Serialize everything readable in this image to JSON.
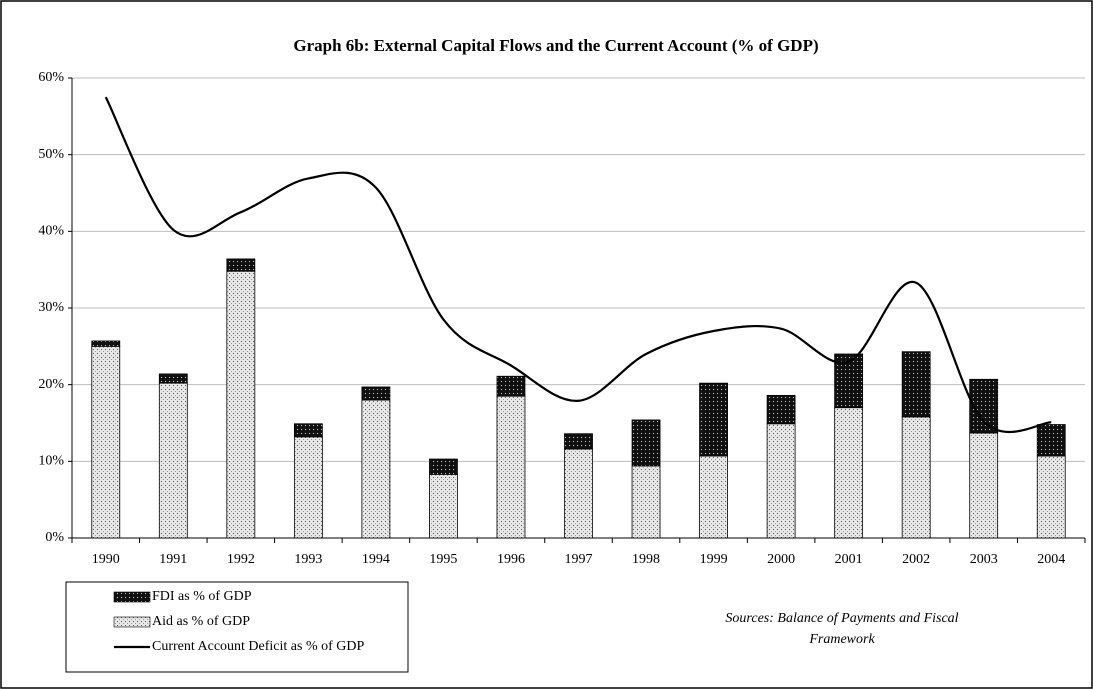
{
  "chart_data": {
    "type": "bar",
    "title": "Graph 6b: External Capital Flows and the Current Account (% of GDP)",
    "categories": [
      "1990",
      "1991",
      "1992",
      "1993",
      "1994",
      "1995",
      "1996",
      "1997",
      "1998",
      "1999",
      "2000",
      "2001",
      "2002",
      "2003",
      "2004"
    ],
    "series": [
      {
        "name": "Aid as % of GDP",
        "type": "bar",
        "color": "#e6e6e6",
        "values": [
          25.0,
          20.2,
          34.8,
          13.2,
          18.0,
          8.3,
          18.5,
          11.6,
          9.4,
          10.7,
          14.9,
          17.0,
          15.8,
          13.7,
          10.7
        ]
      },
      {
        "name": "FDI as % of GDP",
        "type": "bar",
        "color": "#111111",
        "values": [
          0.7,
          1.2,
          1.6,
          1.7,
          1.7,
          2.0,
          2.6,
          2.0,
          6.0,
          9.5,
          3.7,
          7.0,
          8.5,
          7.0,
          4.1
        ]
      },
      {
        "name": "Current Account Deficit as % of GDP",
        "type": "line",
        "color": "#000000",
        "values": [
          57.5,
          40.2,
          42.5,
          46.9,
          45.7,
          28.5,
          22.5,
          17.9,
          24.0,
          27.0,
          27.3,
          23.0,
          33.3,
          15.2,
          15.1
        ]
      }
    ],
    "ylim": [
      0,
      60
    ],
    "yticks": [
      {
        "value": 0,
        "label": "0%"
      },
      {
        "value": 10,
        "label": "10%"
      },
      {
        "value": 20,
        "label": "20%"
      },
      {
        "value": 30,
        "label": "30%"
      },
      {
        "value": 40,
        "label": "40%"
      },
      {
        "value": 50,
        "label": "50%"
      },
      {
        "value": 60,
        "label": "60%"
      }
    ],
    "grid": true,
    "legend": "bottom-left",
    "source_lines": [
      "Sources: Balance of Payments and Fiscal",
      "Framework"
    ]
  }
}
